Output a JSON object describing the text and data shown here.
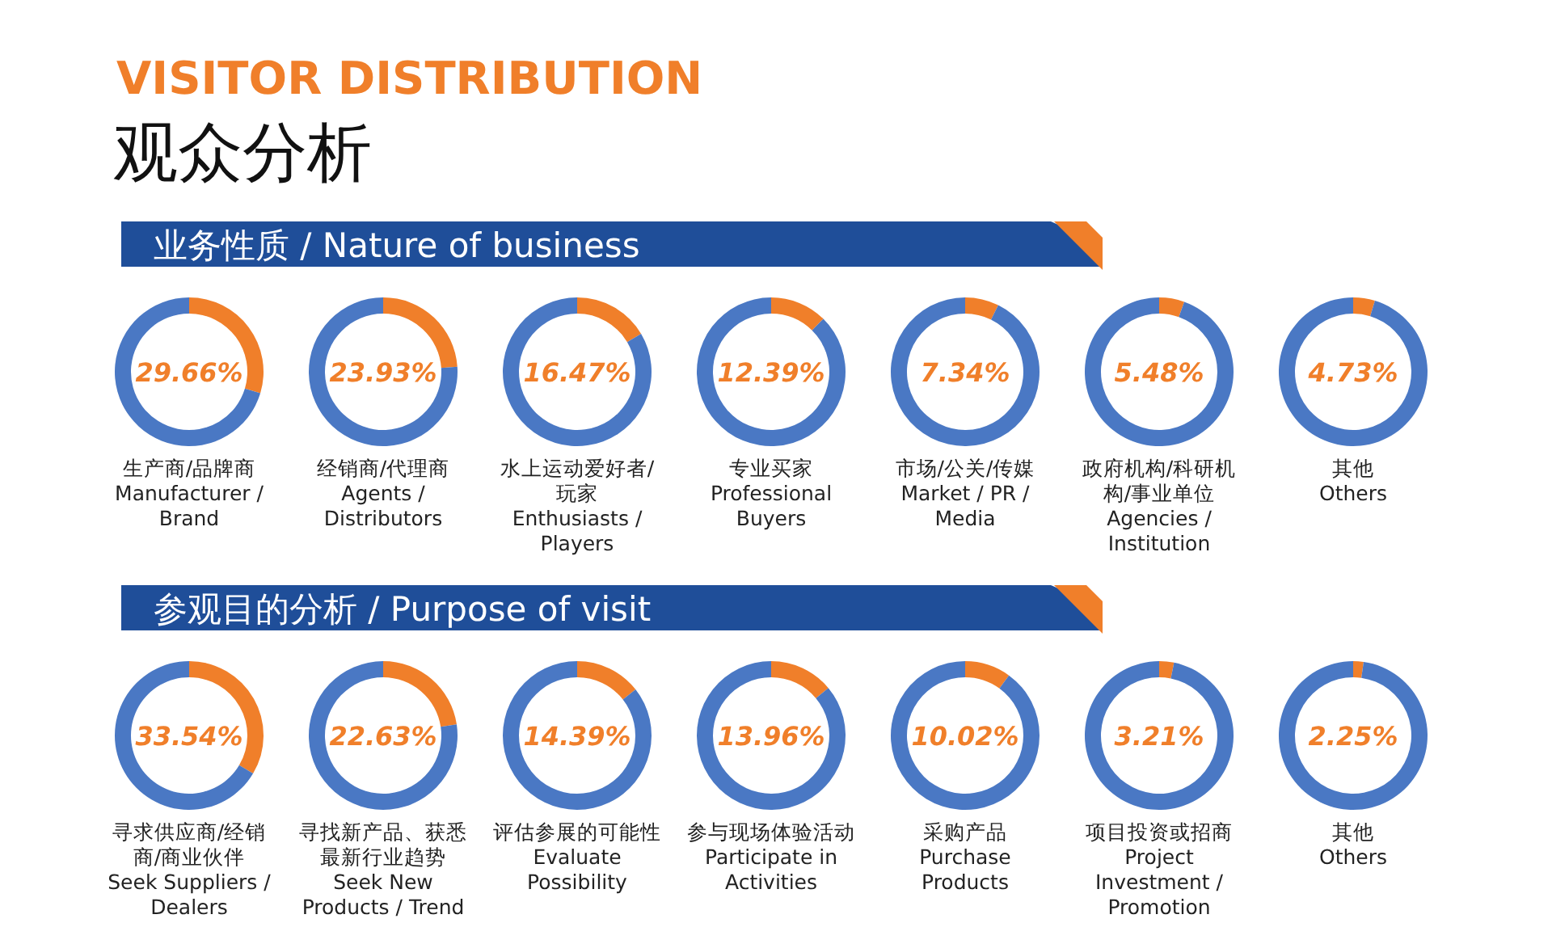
{
  "chart_data": [
    {
      "type": "donut",
      "annotations": [
        "29.66%",
        "VISITOR DISTRIBUTION",
        "观众分析",
        "业务性质  / Nature of business"
      ],
      "title": "生产商/品牌商\nManufacturer / Brand",
      "categories": [
        null,
        null
      ],
      "values": [
        29.66,
        70.34
      ],
      "colors": [
        "#f07f2a",
        "#4a78c4"
      ]
    },
    {
      "type": "donut",
      "annotations": [
        "23.93%"
      ],
      "title": "经销商/代理商\nAgents / Distributors",
      "categories": [
        null,
        null
      ],
      "values": [
        23.93,
        76.07
      ],
      "colors": [
        "#f07f2a",
        "#4a78c4"
      ]
    },
    {
      "type": "donut",
      "annotations": [
        "16.47%"
      ],
      "title": "水上运动爱好者/玩家\nEnthusiasts / Players",
      "categories": [
        null,
        null
      ],
      "values": [
        16.47,
        83.53
      ],
      "colors": [
        "#f07f2a",
        "#4a78c4"
      ]
    },
    {
      "type": "donut",
      "annotations": [
        "12.39%"
      ],
      "title": "专业买家\nProfessional Buyers",
      "categories": [
        null,
        null
      ],
      "values": [
        12.39,
        87.61
      ],
      "colors": [
        "#f07f2a",
        "#4a78c4"
      ]
    },
    {
      "type": "donut",
      "annotations": [
        "7.34%"
      ],
      "title": "市场/公关/传媒\nMarket / PR / Media",
      "categories": [
        null,
        null
      ],
      "values": [
        7.34,
        92.66
      ],
      "colors": [
        "#f07f2a",
        "#4a78c4"
      ]
    },
    {
      "type": "donut",
      "annotations": [
        "5.48%"
      ],
      "title": "政府机构/科研机构/事业单位\nAgencies / Institution",
      "categories": [
        null,
        null
      ],
      "values": [
        5.48,
        94.52
      ],
      "colors": [
        "#f07f2a",
        "#4a78c4"
      ]
    },
    {
      "type": "donut",
      "annotations": [
        "4.73%"
      ],
      "title": "其他\nOthers",
      "categories": [
        null,
        null
      ],
      "values": [
        4.73,
        95.27
      ],
      "colors": [
        "#f07f2a",
        "#4a78c4"
      ]
    },
    {
      "type": "donut",
      "annotations": [
        "33.54%",
        "参观目的分析  / Purpose of visit"
      ],
      "title": "寻求供应商/经销商/商业伙伴\nSeek Suppliers / Dealers",
      "categories": [
        null,
        null
      ],
      "values": [
        33.54,
        66.46
      ],
      "colors": [
        "#f07f2a",
        "#4a78c4"
      ]
    },
    {
      "type": "donut",
      "annotations": [
        "22.63%"
      ],
      "title": "寻找新产品、获悉最新行业趋势\nSeek New Products / Trend",
      "categories": [
        null,
        null
      ],
      "values": [
        22.63,
        77.37
      ],
      "colors": [
        "#f07f2a",
        "#4a78c4"
      ]
    },
    {
      "type": "donut",
      "annotations": [
        "14.39%"
      ],
      "title": "评估参展的可能性\nEvaluate Possibility",
      "categories": [
        null,
        null
      ],
      "values": [
        14.39,
        85.61
      ],
      "colors": [
        "#f07f2a",
        "#4a78c4"
      ]
    },
    {
      "type": "donut",
      "annotations": [
        "13.96%"
      ],
      "title": "参与现场体验活动\nParticipate in Activities",
      "categories": [
        null,
        null
      ],
      "values": [
        13.96,
        86.04
      ],
      "colors": [
        "#f07f2a",
        "#4a78c4"
      ]
    },
    {
      "type": "donut",
      "annotations": [
        "10.02%"
      ],
      "title": "采购产品\nPurchase Products",
      "categories": [
        null,
        null
      ],
      "values": [
        10.02,
        89.98
      ],
      "colors": [
        "#f07f2a",
        "#4a78c4"
      ]
    },
    {
      "type": "donut",
      "annotations": [
        "3.21%"
      ],
      "title": "项目投资或招商\nProject Investment / Promotion",
      "categories": [
        null,
        null
      ],
      "values": [
        3.21,
        96.79
      ],
      "colors": [
        "#f07f2a",
        "#4a78c4"
      ]
    },
    {
      "type": "donut",
      "annotations": [
        "2.25%"
      ],
      "title": "其他\nOthers",
      "categories": [
        null,
        null
      ],
      "values": [
        2.25,
        97.75
      ],
      "colors": [
        "#f07f2a",
        "#4a78c4"
      ]
    }
  ]
}
